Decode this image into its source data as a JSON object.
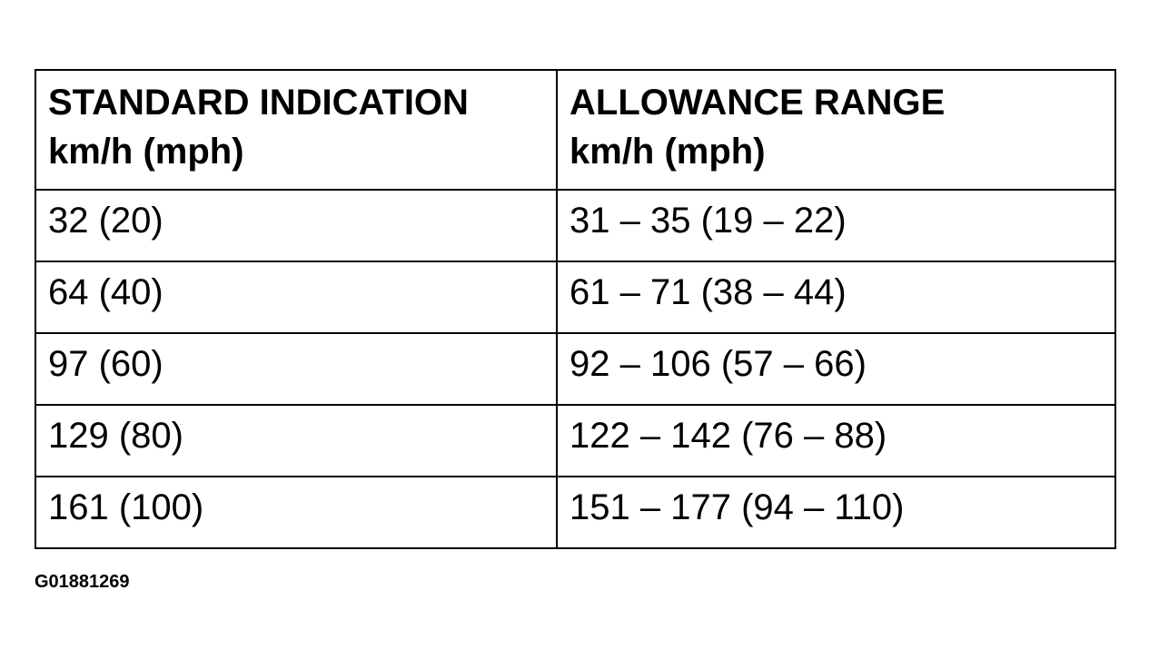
{
  "table": {
    "header": [
      [
        "STANDARD INDICATION",
        "km/h (mph)"
      ],
      [
        "ALLOWANCE RANGE",
        "km/h (mph)"
      ]
    ],
    "rows": [
      [
        "32 (20)",
        "31 – 35 (19 – 22)"
      ],
      [
        "64 (40)",
        "61 – 71 (38 – 44)"
      ],
      [
        "97 (60)",
        "92 – 106 (57 – 66)"
      ],
      [
        "129 (80)",
        "122 – 142 (76 – 88)"
      ],
      [
        "161 (100)",
        "151 – 177 (94 – 110)"
      ]
    ]
  },
  "footer": {
    "code": "G01881269"
  }
}
